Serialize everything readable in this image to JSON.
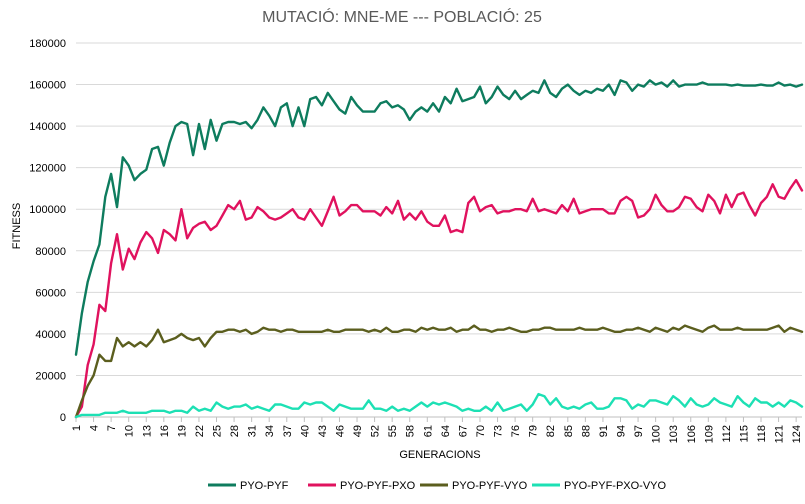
{
  "chart_data": {
    "type": "line",
    "title": "MUTACIÓ: MNE-ME  ---  POBLACIÓ: 25",
    "xlabel": "GENERACIONS",
    "ylabel": "FITNESS",
    "ylim": [
      0,
      180000
    ],
    "yticks": [
      0,
      20000,
      40000,
      60000,
      80000,
      100000,
      120000,
      140000,
      160000,
      180000
    ],
    "ytick_labels": [
      "0",
      "20000",
      "40000",
      "60000",
      "80000",
      "100000",
      "120000",
      "140000",
      "160000",
      "180000"
    ],
    "xlim": [
      1,
      125
    ],
    "xticks": [
      1,
      4,
      7,
      10,
      13,
      16,
      19,
      22,
      25,
      28,
      31,
      34,
      37,
      40,
      43,
      46,
      49,
      52,
      55,
      58,
      61,
      64,
      67,
      70,
      73,
      76,
      79,
      82,
      85,
      88,
      91,
      94,
      97,
      100,
      103,
      106,
      109,
      112,
      115,
      118,
      121,
      124
    ],
    "grid": true,
    "legend_position": "bottom",
    "series": [
      {
        "name": "PYO-PYF",
        "color": "#0e7c5e",
        "x": [
          1,
          2,
          3,
          4,
          5,
          6,
          7,
          8,
          9,
          10,
          11,
          12,
          13,
          14,
          15,
          16,
          17,
          18,
          19,
          20,
          21,
          22,
          23,
          24,
          25,
          26,
          27,
          28,
          29,
          30,
          31,
          32,
          33,
          34,
          35,
          36,
          37,
          38,
          39,
          40,
          41,
          42,
          43,
          44,
          45,
          46,
          47,
          48,
          49,
          50,
          51,
          52,
          53,
          54,
          55,
          56,
          57,
          58,
          59,
          60,
          61,
          62,
          63,
          64,
          65,
          66,
          67,
          68,
          69,
          70,
          71,
          72,
          73,
          74,
          75,
          76,
          77,
          78,
          79,
          80,
          81,
          82,
          83,
          84,
          85,
          86,
          87,
          88,
          89,
          90,
          91,
          92,
          93,
          94,
          95,
          96,
          97,
          98,
          99,
          100,
          101,
          102,
          103,
          104,
          105,
          106,
          107,
          108,
          109,
          110,
          111,
          112,
          113,
          114,
          115,
          116,
          117,
          118,
          119,
          120,
          121,
          122,
          123,
          124,
          125
        ],
        "values": [
          30000,
          50000,
          65000,
          75000,
          83000,
          106000,
          117000,
          101000,
          125000,
          121000,
          114000,
          117000,
          119000,
          129000,
          130000,
          121000,
          132000,
          140000,
          142000,
          141000,
          126000,
          141000,
          129000,
          143000,
          133000,
          141000,
          142000,
          142000,
          141000,
          142000,
          139000,
          143000,
          149000,
          145000,
          140000,
          149000,
          151000,
          140000,
          149000,
          140000,
          153000,
          154000,
          150000,
          156000,
          152000,
          148000,
          146000,
          154000,
          150000,
          147000,
          147000,
          147000,
          151000,
          152000,
          149000,
          150000,
          148000,
          143000,
          147000,
          149000,
          147000,
          151000,
          147000,
          154000,
          151000,
          158000,
          152000,
          153000,
          154000,
          159000,
          151000,
          154000,
          159000,
          155000,
          153000,
          157000,
          153000,
          155000,
          157000,
          156000,
          162000,
          156000,
          154000,
          158000,
          160000,
          157000,
          155000,
          157000,
          156000,
          158000,
          157000,
          160000,
          155000,
          162000,
          161000,
          157000,
          160000,
          159000,
          162000,
          160000,
          161000,
          159000,
          162000,
          159000,
          160000,
          160000,
          160000,
          161000,
          160000,
          160000,
          160000,
          160000,
          159500,
          160000,
          159500,
          159500,
          159500,
          160000,
          159500,
          159500,
          161000,
          159500,
          160000,
          159000,
          160000
        ]
      },
      {
        "name": "PYO-PYF-PXO",
        "color": "#e0125e",
        "x": [
          1,
          2,
          3,
          4,
          5,
          6,
          7,
          8,
          9,
          10,
          11,
          12,
          13,
          14,
          15,
          16,
          17,
          18,
          19,
          20,
          21,
          22,
          23,
          24,
          25,
          26,
          27,
          28,
          29,
          30,
          31,
          32,
          33,
          34,
          35,
          36,
          37,
          38,
          39,
          40,
          41,
          42,
          43,
          44,
          45,
          46,
          47,
          48,
          49,
          50,
          51,
          52,
          53,
          54,
          55,
          56,
          57,
          58,
          59,
          60,
          61,
          62,
          63,
          64,
          65,
          66,
          67,
          68,
          69,
          70,
          71,
          72,
          73,
          74,
          75,
          76,
          77,
          78,
          79,
          80,
          81,
          82,
          83,
          84,
          85,
          86,
          87,
          88,
          89,
          90,
          91,
          92,
          93,
          94,
          95,
          96,
          97,
          98,
          99,
          100,
          101,
          102,
          103,
          104,
          105,
          106,
          107,
          108,
          109,
          110,
          111,
          112,
          113,
          114,
          115,
          116,
          117,
          118,
          119,
          120,
          121,
          122,
          123,
          124,
          125
        ],
        "values": [
          0,
          5000,
          25000,
          35000,
          54000,
          51000,
          74000,
          88000,
          71000,
          81000,
          76000,
          84000,
          89000,
          86000,
          79000,
          90000,
          88000,
          85000,
          100000,
          86000,
          91000,
          93000,
          94000,
          90000,
          92000,
          97000,
          102000,
          100000,
          104000,
          95000,
          96000,
          101000,
          99000,
          96000,
          95000,
          96000,
          98000,
          100000,
          96000,
          95000,
          100000,
          96000,
          92000,
          99000,
          106000,
          97000,
          99000,
          102000,
          102000,
          99000,
          99000,
          99000,
          97000,
          101000,
          98000,
          104000,
          95000,
          98000,
          95000,
          99000,
          94000,
          92000,
          92000,
          97000,
          89000,
          90000,
          89000,
          103000,
          106000,
          99000,
          101000,
          102000,
          98000,
          99000,
          99000,
          100000,
          100000,
          99000,
          105000,
          99000,
          100000,
          99000,
          98000,
          102000,
          99000,
          105000,
          98000,
          99000,
          100000,
          100000,
          100000,
          98000,
          98000,
          104000,
          106000,
          104000,
          96000,
          97000,
          100000,
          107000,
          102000,
          99000,
          99000,
          101000,
          106000,
          105000,
          101000,
          99000,
          107000,
          104000,
          98000,
          107000,
          101000,
          107000,
          108000,
          102000,
          97000,
          103000,
          106000,
          112000,
          106000,
          105000,
          110000,
          114000,
          109000
        ]
      },
      {
        "name": "PYO-PYF-VYO",
        "color": "#5b5e1e",
        "x": [
          1,
          2,
          3,
          4,
          5,
          6,
          7,
          8,
          9,
          10,
          11,
          12,
          13,
          14,
          15,
          16,
          17,
          18,
          19,
          20,
          21,
          22,
          23,
          24,
          25,
          26,
          27,
          28,
          29,
          30,
          31,
          32,
          33,
          34,
          35,
          36,
          37,
          38,
          39,
          40,
          41,
          42,
          43,
          44,
          45,
          46,
          47,
          48,
          49,
          50,
          51,
          52,
          53,
          54,
          55,
          56,
          57,
          58,
          59,
          60,
          61,
          62,
          63,
          64,
          65,
          66,
          67,
          68,
          69,
          70,
          71,
          72,
          73,
          74,
          75,
          76,
          77,
          78,
          79,
          80,
          81,
          82,
          83,
          84,
          85,
          86,
          87,
          88,
          89,
          90,
          91,
          92,
          93,
          94,
          95,
          96,
          97,
          98,
          99,
          100,
          101,
          102,
          103,
          104,
          105,
          106,
          107,
          108,
          109,
          110,
          111,
          112,
          113,
          114,
          115,
          116,
          117,
          118,
          119,
          120,
          121,
          122,
          123,
          124,
          125
        ],
        "values": [
          0,
          8000,
          15000,
          20000,
          30000,
          27000,
          27000,
          38000,
          34000,
          36000,
          34000,
          36000,
          34000,
          37000,
          42000,
          36000,
          37000,
          38000,
          40000,
          38000,
          37000,
          38000,
          34000,
          38000,
          41000,
          41000,
          42000,
          42000,
          41000,
          42000,
          40000,
          41000,
          43000,
          42000,
          42000,
          41000,
          42000,
          42000,
          41000,
          41000,
          41000,
          41000,
          41000,
          42000,
          41000,
          41000,
          42000,
          42000,
          42000,
          42000,
          41000,
          42000,
          41000,
          43000,
          41000,
          41000,
          42000,
          42000,
          41000,
          43000,
          42000,
          43000,
          42000,
          42000,
          43000,
          41000,
          42000,
          42000,
          44000,
          42000,
          42000,
          41000,
          42000,
          42000,
          43000,
          42000,
          41000,
          41000,
          42000,
          42000,
          43000,
          43000,
          42000,
          42000,
          42000,
          42000,
          43000,
          42000,
          42000,
          42000,
          43000,
          42000,
          41000,
          41000,
          42000,
          42000,
          43000,
          42000,
          41000,
          43000,
          42000,
          41000,
          43000,
          42000,
          44000,
          43000,
          42000,
          41000,
          43000,
          44000,
          42000,
          42000,
          42000,
          43000,
          42000,
          42000,
          42000,
          42000,
          42000,
          43000,
          44000,
          41000,
          43000,
          42000,
          41000
        ]
      },
      {
        "name": "PYO-PYF-PXO-VYO",
        "color": "#1de0b4",
        "x": [
          1,
          2,
          3,
          4,
          5,
          6,
          7,
          8,
          9,
          10,
          11,
          12,
          13,
          14,
          15,
          16,
          17,
          18,
          19,
          20,
          21,
          22,
          23,
          24,
          25,
          26,
          27,
          28,
          29,
          30,
          31,
          32,
          33,
          34,
          35,
          36,
          37,
          38,
          39,
          40,
          41,
          42,
          43,
          44,
          45,
          46,
          47,
          48,
          49,
          50,
          51,
          52,
          53,
          54,
          55,
          56,
          57,
          58,
          59,
          60,
          61,
          62,
          63,
          64,
          65,
          66,
          67,
          68,
          69,
          70,
          71,
          72,
          73,
          74,
          75,
          76,
          77,
          78,
          79,
          80,
          81,
          82,
          83,
          84,
          85,
          86,
          87,
          88,
          89,
          90,
          91,
          92,
          93,
          94,
          95,
          96,
          97,
          98,
          99,
          100,
          101,
          102,
          103,
          104,
          105,
          106,
          107,
          108,
          109,
          110,
          111,
          112,
          113,
          114,
          115,
          116,
          117,
          118,
          119,
          120,
          121,
          122,
          123,
          124,
          125
        ],
        "values": [
          0,
          1000,
          1000,
          1000,
          1000,
          2000,
          2000,
          2000,
          3000,
          2000,
          2000,
          2000,
          2000,
          3000,
          3000,
          3000,
          2000,
          3000,
          3000,
          2000,
          5000,
          3000,
          4000,
          3000,
          7000,
          5000,
          4000,
          5000,
          5000,
          6000,
          4000,
          5000,
          4000,
          3000,
          6000,
          6000,
          5000,
          4000,
          4000,
          7000,
          6000,
          7000,
          7000,
          5000,
          3000,
          6000,
          5000,
          4000,
          4000,
          4000,
          8000,
          4000,
          4000,
          3000,
          5000,
          3000,
          4000,
          3000,
          5000,
          7000,
          5000,
          7000,
          6000,
          7000,
          6000,
          5000,
          3000,
          4000,
          3000,
          3000,
          5000,
          3000,
          7000,
          3000,
          4000,
          5000,
          6000,
          3000,
          6000,
          11000,
          10000,
          6000,
          9000,
          5000,
          4000,
          5000,
          4000,
          6000,
          7000,
          4000,
          4000,
          5000,
          9000,
          9000,
          8000,
          4000,
          6000,
          5000,
          8000,
          8000,
          7000,
          6000,
          10000,
          8000,
          5000,
          9000,
          6000,
          5000,
          6000,
          9000,
          7000,
          6000,
          5000,
          10000,
          7000,
          5000,
          9000,
          7000,
          7000,
          5000,
          7000,
          5000,
          8000,
          7000,
          5000
        ]
      }
    ]
  }
}
